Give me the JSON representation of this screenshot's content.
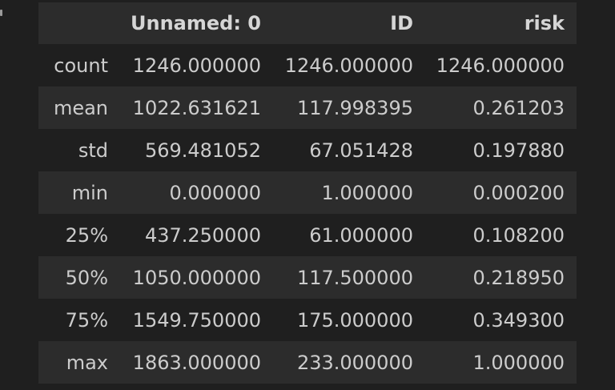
{
  "table": {
    "columns": [
      "",
      "Unnamed: 0",
      "ID",
      "risk"
    ],
    "rows": [
      {
        "label": "count",
        "values": [
          "1246.000000",
          "1246.000000",
          "1246.000000"
        ]
      },
      {
        "label": "mean",
        "values": [
          "1022.631621",
          "117.998395",
          "0.261203"
        ]
      },
      {
        "label": "std",
        "values": [
          "569.481052",
          "67.051428",
          "0.197880"
        ]
      },
      {
        "label": "min",
        "values": [
          "0.000000",
          "1.000000",
          "0.000200"
        ]
      },
      {
        "label": "25%",
        "values": [
          "437.250000",
          "61.000000",
          "0.108200"
        ]
      },
      {
        "label": "50%",
        "values": [
          "1050.000000",
          "117.500000",
          "0.218950"
        ]
      },
      {
        "label": "75%",
        "values": [
          "1549.750000",
          "175.000000",
          "0.349300"
        ]
      },
      {
        "label": "max",
        "values": [
          "1863.000000",
          "233.000000",
          "1.000000"
        ]
      }
    ]
  },
  "colors": {
    "background": "#1f1f1f",
    "stripe": "#2c2c2c",
    "text": "#cccccc"
  }
}
